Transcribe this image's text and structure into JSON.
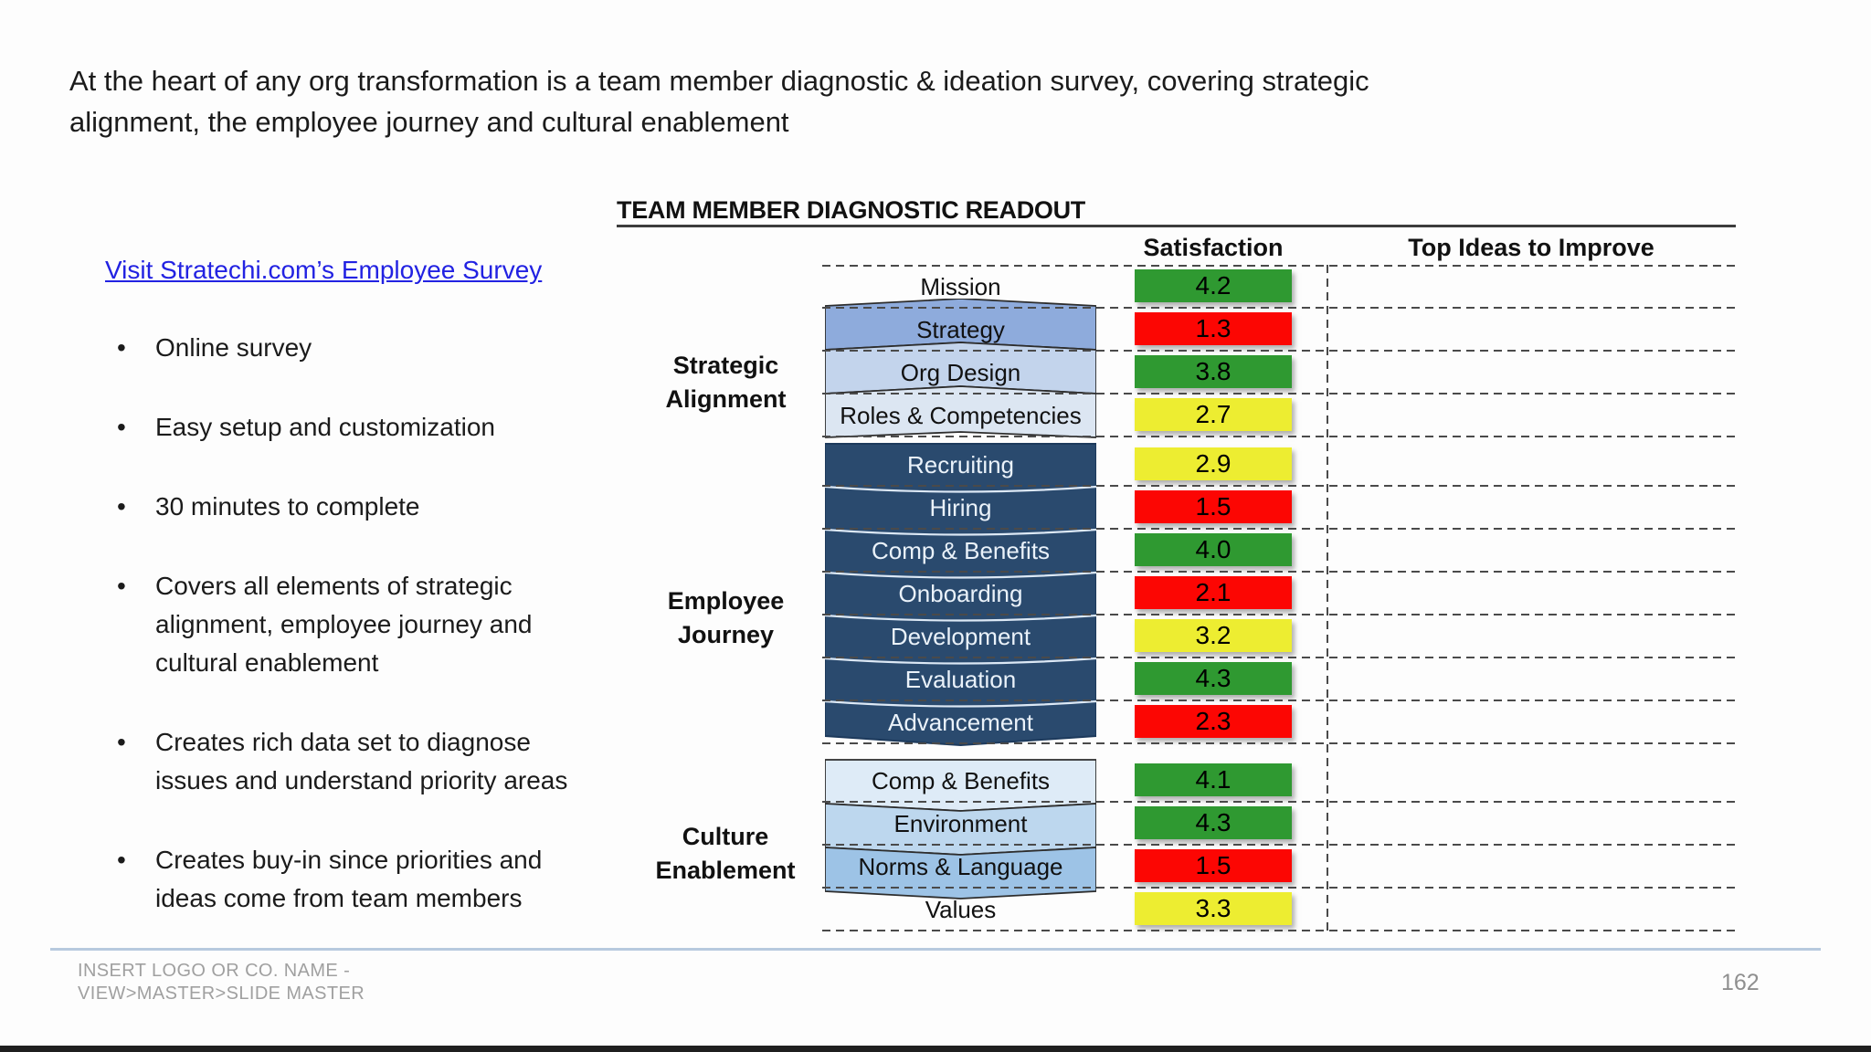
{
  "slide": {
    "title": "At the heart of any org transformation is a team member diagnostic & ideation survey, covering strategic alignment, the employee journey and cultural enablement",
    "footer_line1": "INSERT LOGO OR CO. NAME -",
    "footer_line2": "VIEW>MASTER>SLIDE MASTER",
    "page_number": "162"
  },
  "left_panel": {
    "link_text": "Visit Stratechi.com’s Employee Survey",
    "bullets": [
      "Online survey",
      "Easy setup and customization",
      "30 minutes to complete",
      "Covers all elements of strategic alignment, employee journey and cultural enablement",
      "Creates rich data set to diagnose issues and understand priority areas",
      "Creates buy-in since priorities and ideas come from team members"
    ]
  },
  "readout": {
    "title": "TEAM MEMBER DIAGNOSTIC READOUT",
    "columns": {
      "satisfaction": "Satisfaction",
      "top_ideas": "Top Ideas to Improve"
    },
    "sections": [
      {
        "label": "Strategic Alignment",
        "rows": [
          {
            "label": "Mission",
            "satisfaction": "4.2",
            "rating": "green"
          },
          {
            "label": "Strategy",
            "satisfaction": "1.3",
            "rating": "red"
          },
          {
            "label": "Org Design",
            "satisfaction": "3.8",
            "rating": "green"
          },
          {
            "label": "Roles & Competencies",
            "satisfaction": "2.7",
            "rating": "yellow"
          }
        ]
      },
      {
        "label": "Employee Journey",
        "rows": [
          {
            "label": "Recruiting",
            "satisfaction": "2.9",
            "rating": "yellow"
          },
          {
            "label": "Hiring",
            "satisfaction": "1.5",
            "rating": "red"
          },
          {
            "label": "Comp & Benefits",
            "satisfaction": "4.0",
            "rating": "green"
          },
          {
            "label": "Onboarding",
            "satisfaction": "2.1",
            "rating": "red"
          },
          {
            "label": "Development",
            "satisfaction": "3.2",
            "rating": "yellow"
          },
          {
            "label": "Evaluation",
            "satisfaction": "4.3",
            "rating": "green"
          },
          {
            "label": "Advancement",
            "satisfaction": "2.3",
            "rating": "red"
          }
        ]
      },
      {
        "label": "Culture Enablement",
        "rows": [
          {
            "label": "Comp & Benefits",
            "satisfaction": "4.1",
            "rating": "green"
          },
          {
            "label": "Environment",
            "satisfaction": "4.3",
            "rating": "green"
          },
          {
            "label": "Norms & Language",
            "satisfaction": "1.5",
            "rating": "red"
          },
          {
            "label": "Values",
            "satisfaction": "3.3",
            "rating": "yellow"
          }
        ]
      }
    ],
    "rating_colors": {
      "green": "#2f9931",
      "red": "#fc0603",
      "yellow": "#eded31"
    },
    "banner_colors": {
      "strategic_bands": [
        "#8eabdc",
        "#c3d4ec",
        "#dce6f2"
      ],
      "employee_navy": "#2a4a6e",
      "culture_bands": [
        "#deebf7",
        "#bdd7ee",
        "#9dc3e6"
      ]
    },
    "link_blue": "#2222e2"
  }
}
